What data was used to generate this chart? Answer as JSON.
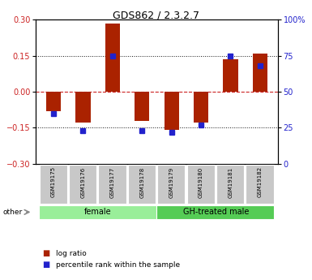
{
  "title": "GDS862 / 2.3.2.7",
  "samples": [
    "GSM19175",
    "GSM19176",
    "GSM19177",
    "GSM19178",
    "GSM19179",
    "GSM19180",
    "GSM19181",
    "GSM19182"
  ],
  "log_ratio": [
    -0.08,
    -0.13,
    0.285,
    -0.12,
    -0.16,
    -0.13,
    0.135,
    0.16
  ],
  "percentile_rank_pct": [
    35,
    23,
    75,
    23,
    22,
    27,
    75,
    68
  ],
  "ylim": [
    -0.3,
    0.3
  ],
  "yticks_left": [
    -0.3,
    -0.15,
    0,
    0.15,
    0.3
  ],
  "yticks_right": [
    0,
    25,
    50,
    75,
    100
  ],
  "groups": [
    {
      "label": "female",
      "start": 0,
      "end": 4,
      "color": "#99EE99"
    },
    {
      "label": "GH-treated male",
      "start": 4,
      "end": 8,
      "color": "#55CC55"
    }
  ],
  "bar_color": "#AA2200",
  "blue_color": "#2222CC",
  "dotted_color": "#111111",
  "dashed_zero_color": "#CC2222",
  "bar_width": 0.5,
  "sample_box_color": "#C8C8C8",
  "other_label": "other",
  "legend_log_ratio": "log ratio",
  "legend_percentile": "percentile rank within the sample",
  "right_axis_color": "#2222CC",
  "left_axis_color": "#CC2222",
  "title_fontsize": 9,
  "tick_fontsize": 7,
  "sample_fontsize": 5,
  "group_fontsize": 7,
  "legend_fontsize": 6.5
}
